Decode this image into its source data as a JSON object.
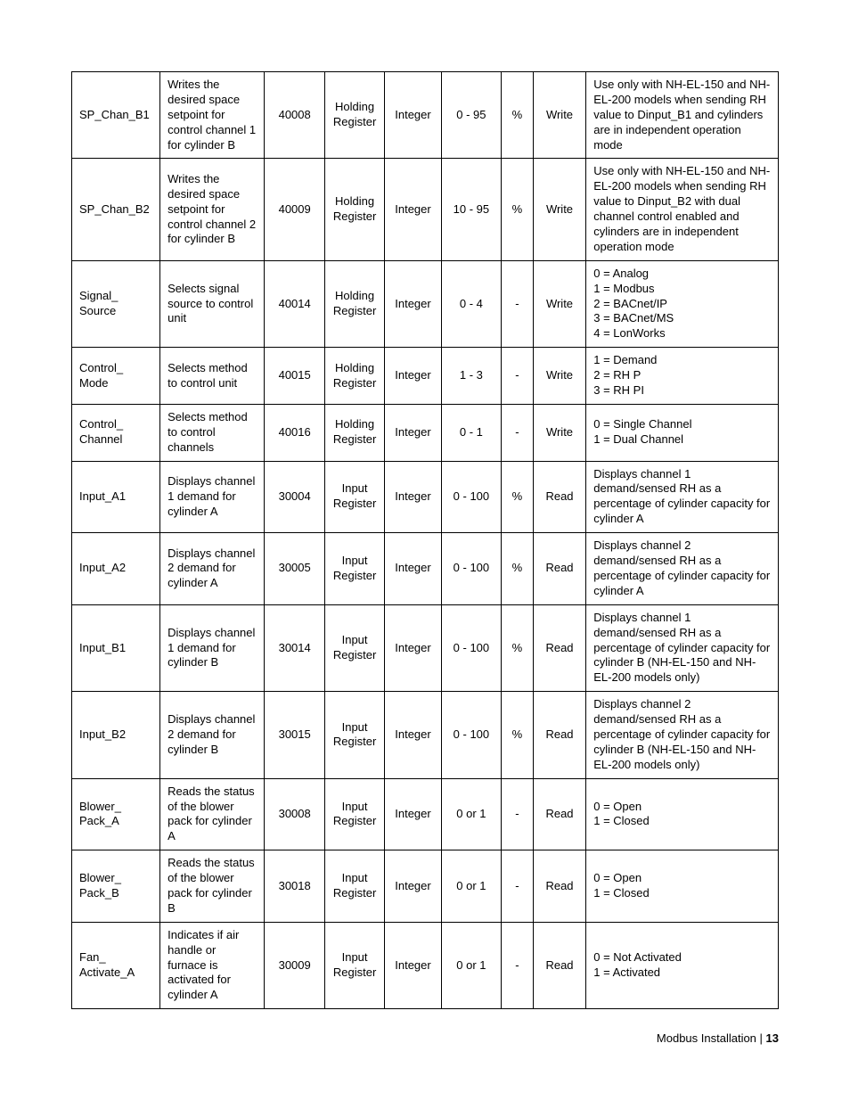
{
  "table": {
    "columns": [
      "name",
      "desc",
      "addr",
      "reg",
      "type",
      "range",
      "unit",
      "access",
      "notes"
    ],
    "colClasses": [
      "col-name",
      "col-desc",
      "col-addr",
      "col-reg",
      "col-type",
      "col-range",
      "col-unit",
      "col-access",
      "col-notes"
    ],
    "rows": [
      {
        "name": "SP_Chan_B1",
        "desc": "Writes the desired space setpoint for control channel 1 for cylinder B",
        "addr": "40008",
        "reg": "Holding Register",
        "type": "Integer",
        "range": "0 - 95",
        "unit": "%",
        "access": "Write",
        "notes": "Use only with NH-EL-150 and NH-EL-200 models when sending RH value to Dinput_B1 and cylinders are in independent operation mode"
      },
      {
        "name": "SP_Chan_B2",
        "desc": "Writes the desired space setpoint for control channel 2 for cylinder B",
        "addr": "40009",
        "reg": "Holding Register",
        "type": "Integer",
        "range": "10 - 95",
        "unit": "%",
        "access": "Write",
        "notes": "Use only with NH-EL-150 and NH-EL-200 models when sending RH value to Dinput_B2 with dual channel control enabled and cylinders are in independent operation mode"
      },
      {
        "name": "Signal_ Source",
        "desc": "Selects signal source to control unit",
        "addr": "40014",
        "reg": "Holding Register",
        "type": "Integer",
        "range": "0 - 4",
        "unit": "-",
        "access": "Write",
        "notes": "0 = Analog\n1 = Modbus\n2 = BACnet/IP\n3 = BACnet/MS\n4 = LonWorks"
      },
      {
        "name": "Control_ Mode",
        "desc": "Selects method to control unit",
        "addr": "40015",
        "reg": "Holding Register",
        "type": "Integer",
        "range": "1 - 3",
        "unit": "-",
        "access": "Write",
        "notes": "1 = Demand\n2 = RH P\n3 = RH PI"
      },
      {
        "name": "Control_ Channel",
        "desc": "Selects method to control channels",
        "addr": "40016",
        "reg": "Holding Register",
        "type": "Integer",
        "range": "0 - 1",
        "unit": "-",
        "access": "Write",
        "notes": "0 = Single Channel\n1 = Dual Channel"
      },
      {
        "name": "Input_A1",
        "desc": "Displays channel 1 demand for cylinder A",
        "addr": "30004",
        "reg": "Input Register",
        "type": "Integer",
        "range": "0 - 100",
        "unit": "%",
        "access": "Read",
        "notes": "Displays channel 1 demand/sensed RH as a percentage of cylinder capacity for cylinder A"
      },
      {
        "name": "Input_A2",
        "desc": "Displays channel 2 demand for cylinder A",
        "addr": "30005",
        "reg": "Input Register",
        "type": "Integer",
        "range": "0 - 100",
        "unit": "%",
        "access": "Read",
        "notes": "Displays channel 2 demand/sensed RH as a percentage of cylinder capacity for cylinder A"
      },
      {
        "name": "Input_B1",
        "desc": "Displays channel 1 demand for cylinder B",
        "addr": "30014",
        "reg": "Input Register",
        "type": "Integer",
        "range": "0 - 100",
        "unit": "%",
        "access": "Read",
        "notes": "Displays channel 1 demand/sensed RH as a percentage of cylinder capacity for cylinder B (NH-EL-150 and NH-EL-200 models only)"
      },
      {
        "name": "Input_B2",
        "desc": "Displays channel 2 demand for cylinder B",
        "addr": "30015",
        "reg": "Input Register",
        "type": "Integer",
        "range": "0 - 100",
        "unit": "%",
        "access": "Read",
        "notes": "Displays channel 2 demand/sensed RH as a percentage of cylinder capacity for cylinder B (NH-EL-150 and NH-EL-200 models only)"
      },
      {
        "name": "Blower_ Pack_A",
        "desc": "Reads the status of the blower pack for cylinder A",
        "addr": "30008",
        "reg": "Input Register",
        "type": "Integer",
        "range": "0 or 1",
        "unit": "-",
        "access": "Read",
        "notes": "0 = Open\n1 = Closed"
      },
      {
        "name": "Blower_ Pack_B",
        "desc": "Reads the status of the blower pack for cylinder B",
        "addr": "30018",
        "reg": "Input Register",
        "type": "Integer",
        "range": "0 or 1",
        "unit": "-",
        "access": "Read",
        "notes": "0 = Open\n1 = Closed"
      },
      {
        "name": "Fan_ Activate_A",
        "desc": "Indicates if air handle or furnace is activated for cylinder A",
        "addr": "30009",
        "reg": "Input Register",
        "type": "Integer",
        "range": "0 or 1",
        "unit": "-",
        "access": "Read",
        "notes": "0 = Not Activated\n1 = Activated"
      }
    ]
  },
  "footer": {
    "text": "Modbus Installation | ",
    "page": "13"
  }
}
